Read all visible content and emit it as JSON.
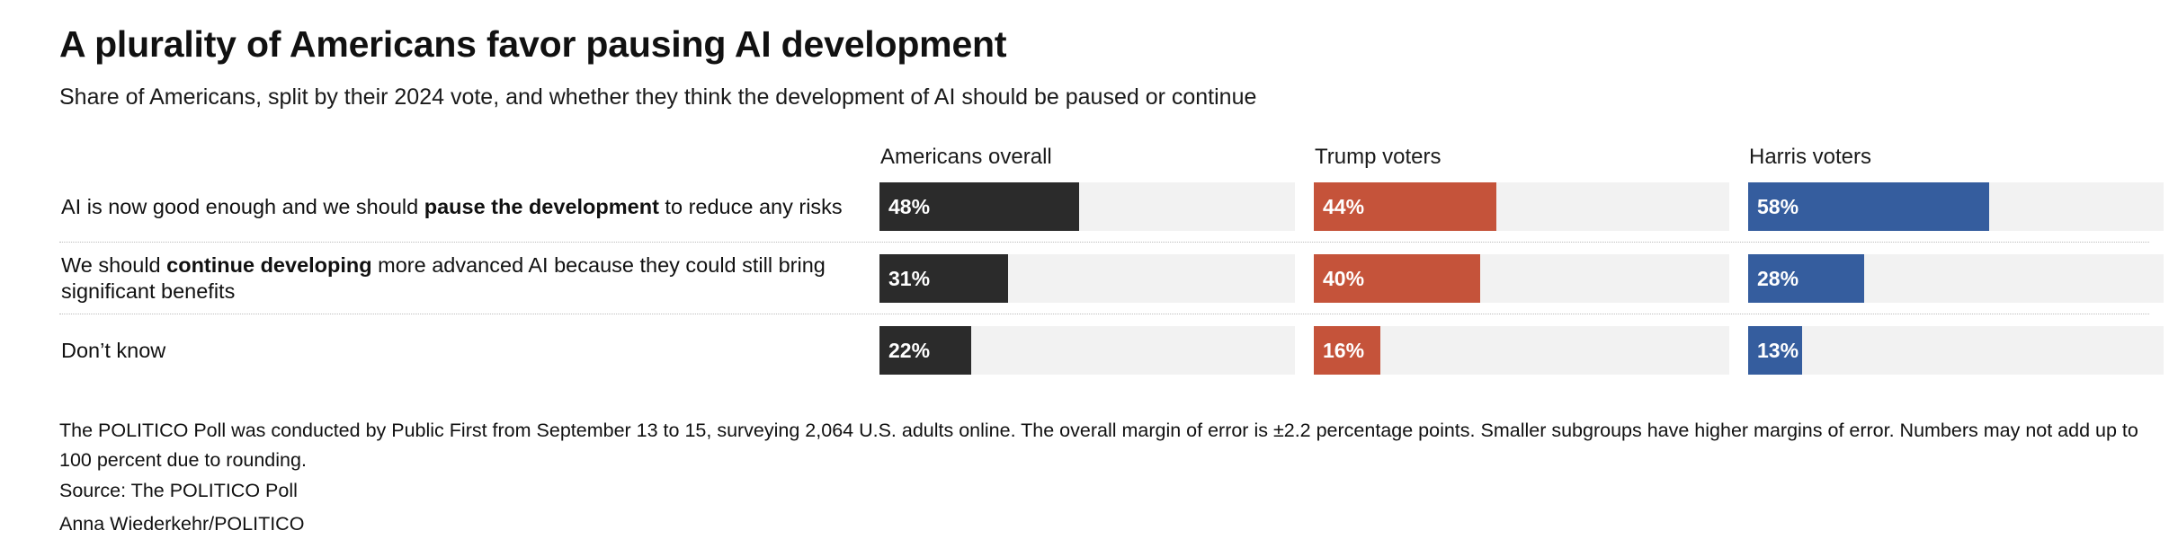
{
  "title": "A plurality of Americans favor pausing AI development",
  "subtitle": "Share of Americans, split by their 2024 vote, and whether they think the development of AI should be paused or continue",
  "colors": {
    "overall": "#2b2b2b",
    "trump": "#c5533a",
    "harris": "#355d9e",
    "track": "#f2f2f2"
  },
  "chart_data": {
    "type": "bar",
    "orientation": "horizontal",
    "xlim": [
      0,
      100
    ],
    "unit": "%",
    "categories": [
      {
        "label_parts": [
          "AI is now good enough and we should ",
          "pause the development",
          " to reduce any risks"
        ]
      },
      {
        "label_parts": [
          "We should ",
          "continue developing",
          " more advanced AI because they could still bring significant benefits"
        ]
      },
      {
        "label_parts": [
          "Don’t know",
          "",
          ""
        ]
      }
    ],
    "series": [
      {
        "name": "Americans overall",
        "color_key": "overall",
        "values": [
          48,
          31,
          22
        ],
        "labels": [
          "48%",
          "31%",
          "22%"
        ]
      },
      {
        "name": "Trump voters",
        "color_key": "trump",
        "values": [
          44,
          40,
          16
        ],
        "labels": [
          "44%",
          "40%",
          "16%"
        ]
      },
      {
        "name": "Harris voters",
        "color_key": "harris",
        "values": [
          58,
          28,
          13
        ],
        "labels": [
          "58%",
          "28%",
          "13%"
        ]
      }
    ]
  },
  "footer": {
    "notes": "The POLITICO Poll was conducted by Public First from September 13 to 15, surveying 2,064 U.S. adults online. The overall margin of error is ±2.2 percentage points. Smaller subgroups have higher margins of error. Numbers may not add up to 100 percent due to rounding.",
    "source": "Source: The POLITICO Poll",
    "credit": "Anna Wiederkehr/POLITICO"
  }
}
